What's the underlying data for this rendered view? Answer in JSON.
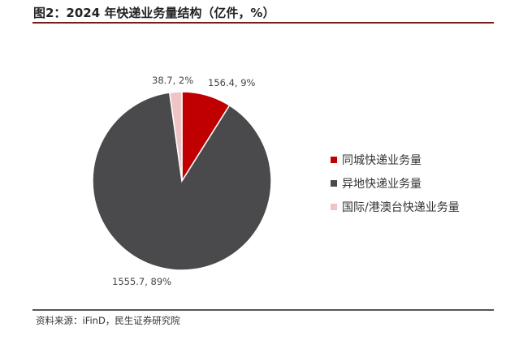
{
  "header": {
    "title": "图2：2024 年快递业务量结构（亿件，%）"
  },
  "footer": {
    "source": "资料来源：iFinD，民生证券研究院"
  },
  "colors": {
    "accent": "#c00000",
    "dark": "#4a4a4d",
    "light": "#efc4c4"
  },
  "chart_data": {
    "type": "pie",
    "title": "",
    "legend_position": "right",
    "series": [
      {
        "name": "同城快递业务量",
        "value": 156.4,
        "percent": 9,
        "label": "156.4, 9%",
        "color": "#c00000"
      },
      {
        "name": "异地快递业务量",
        "value": 1555.7,
        "percent": 89,
        "label": "1555.7, 89%",
        "color": "#4a4a4d"
      },
      {
        "name": "国际/港澳台快递业务量",
        "value": 38.7,
        "percent": 2,
        "label": "38.7, 2%",
        "color": "#efc4c4"
      }
    ]
  }
}
